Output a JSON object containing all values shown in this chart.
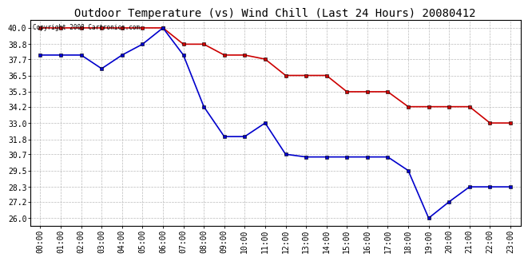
{
  "title": "Outdoor Temperature (vs) Wind Chill (Last 24 Hours) 20080412",
  "copyright_text": "Copyright 2008 Cartronics.com",
  "hours": [
    "00:00",
    "01:00",
    "02:00",
    "03:00",
    "04:00",
    "05:00",
    "06:00",
    "07:00",
    "08:00",
    "09:00",
    "10:00",
    "11:00",
    "12:00",
    "13:00",
    "14:00",
    "15:00",
    "16:00",
    "17:00",
    "18:00",
    "19:00",
    "20:00",
    "21:00",
    "22:00",
    "23:00"
  ],
  "temp_red": [
    40.0,
    40.0,
    40.0,
    40.0,
    40.0,
    40.0,
    40.0,
    38.8,
    38.8,
    38.0,
    38.0,
    37.7,
    36.5,
    36.5,
    36.5,
    35.3,
    35.3,
    35.3,
    34.2,
    34.2,
    34.2,
    34.2,
    33.0,
    33.0
  ],
  "temp_blue": [
    38.0,
    38.0,
    38.0,
    37.0,
    38.0,
    38.8,
    40.0,
    38.0,
    34.2,
    32.0,
    32.0,
    33.0,
    30.7,
    30.5,
    30.5,
    30.5,
    30.5,
    30.5,
    29.5,
    26.0,
    27.2,
    28.3,
    28.3,
    28.3
  ],
  "ylim_min": 25.4,
  "ylim_max": 40.6,
  "yticks": [
    26.0,
    27.2,
    28.3,
    29.5,
    30.7,
    31.8,
    33.0,
    34.2,
    35.3,
    36.5,
    37.7,
    38.8,
    40.0
  ],
  "red_color": "#cc0000",
  "blue_color": "#0000cc",
  "grid_color": "#bbbbbb",
  "bg_color": "#ffffff",
  "marker": "s",
  "marker_size": 3,
  "line_width": 1.2,
  "title_fontsize": 10,
  "tick_fontsize": 7
}
